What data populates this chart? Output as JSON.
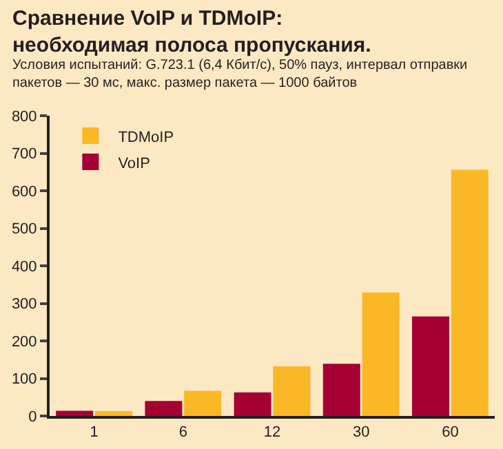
{
  "chart_data": {
    "type": "bar",
    "title": "Сравнение VoIP и TDMoIP:\nнеобходимая полоса пропускания.",
    "subtitle": "Условия испытаний: G.723.1 (6,4 Кбит/с), 50% пауз, интервал отправки\nпакетов — 30 мс, макс. размер пакета — 1000 байтов",
    "categories": [
      "1",
      "6",
      "12",
      "30",
      "60"
    ],
    "series": [
      {
        "name": "VoIP",
        "color": "#a50034",
        "values": [
          14,
          40,
          63,
          139,
          265
        ]
      },
      {
        "name": "TDMoIP",
        "color": "#fbb826",
        "values": [
          13,
          67,
          132,
          329,
          656
        ]
      }
    ],
    "ylim": [
      0,
      800
    ],
    "yticks": [
      0,
      100,
      200,
      300,
      400,
      500,
      600,
      700,
      800
    ],
    "grid": false,
    "legend": "top left"
  }
}
